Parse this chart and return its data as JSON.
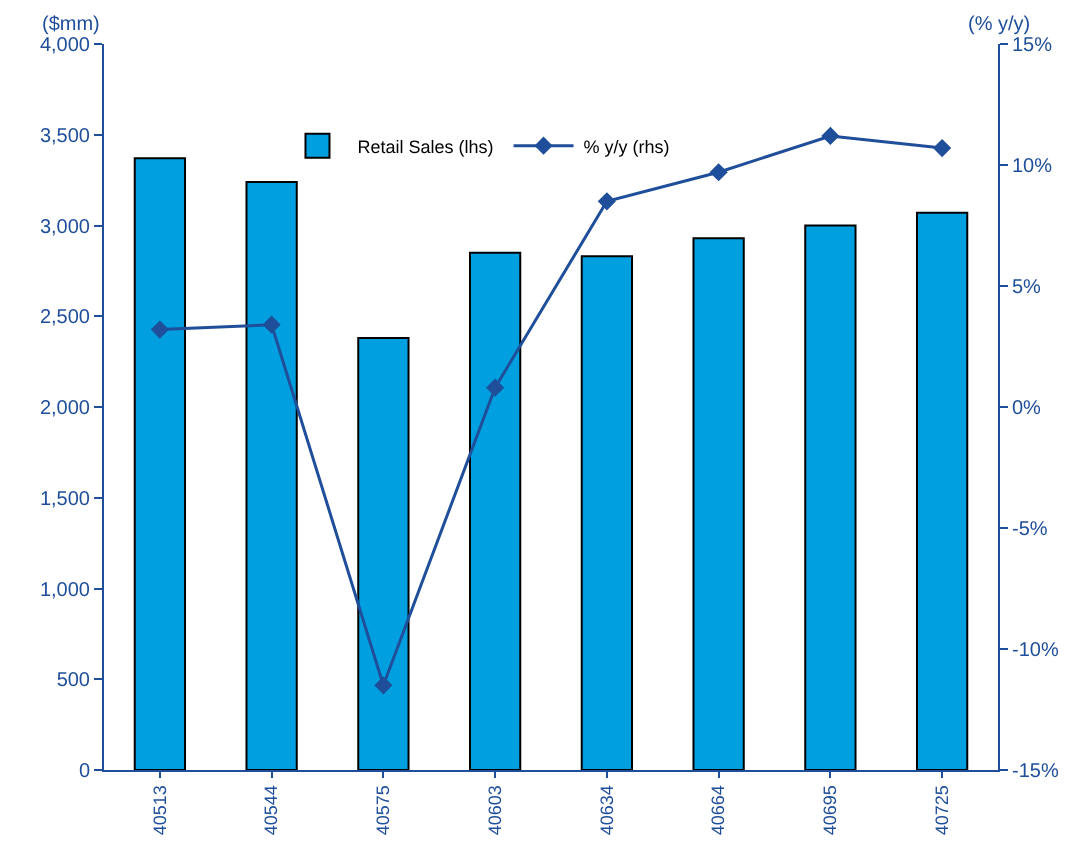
{
  "chart_data": {
    "type": "bar",
    "categories": [
      "40513",
      "40544",
      "40575",
      "40603",
      "40634",
      "40664",
      "40695",
      "40725"
    ],
    "ylabel": "($mm)",
    "y2label": "(% y/y)",
    "series": [
      {
        "name": "Retail Sales (lhs)",
        "color": "#00a0e0",
        "values": [
          3370,
          3240,
          2380,
          2850,
          2830,
          2930,
          3000,
          3070
        ]
      },
      {
        "name": "% y/y (rhs)",
        "type": "line",
        "axis": "y2",
        "color": "#1f4e9a",
        "marker": "diamond",
        "values": [
          3.2,
          3.4,
          -11.5,
          0.8,
          8.5,
          9.7,
          11.2,
          10.7
        ]
      }
    ],
    "ylim": [
      0,
      4000
    ],
    "yticks": [
      0,
      500,
      {
        "value": 1000,
        "label": "1,000"
      },
      {
        "value": 1500,
        "label": "1,500"
      },
      {
        "value": 2000,
        "label": "2,000"
      },
      {
        "value": 2500,
        "label": "2,500"
      },
      {
        "value": 3000,
        "label": "3,000"
      },
      {
        "value": 3500,
        "label": "3,500"
      },
      {
        "value": 4000,
        "label": "4,000"
      }
    ],
    "y2lim": [
      -15,
      15
    ],
    "y2ticks": [
      {
        "value": -15,
        "label": "-15%"
      },
      {
        "value": -10,
        "label": "-10%"
      },
      {
        "value": -5,
        "label": "-5%"
      },
      {
        "value": 0,
        "label": "0%"
      },
      {
        "value": 5,
        "label": "5%"
      },
      {
        "value": 10,
        "label": "10%"
      },
      {
        "value": 15,
        "label": "15%"
      }
    ],
    "grid": false,
    "legend": "top"
  }
}
